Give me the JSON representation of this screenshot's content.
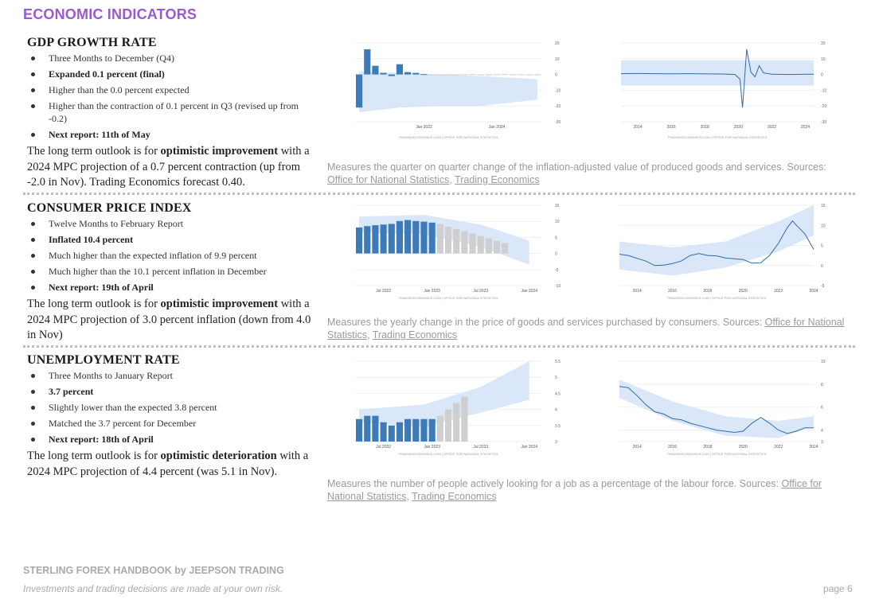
{
  "page": {
    "title": "ECONOMIC INDICATORS",
    "footer_brand": "STERLING FOREX HANDBOOK by JEEPSON TRADING",
    "footer_risk": "Investments and trading decisions are made at your own risk.",
    "page_number": "page 6"
  },
  "sections": {
    "gdp": {
      "heading": "GDP GROWTH RATE",
      "bullets": [
        "Three Months to December (Q4)",
        "Expanded 0.1 percent (final)",
        "Higher than the 0.0 percent expected",
        "Higher than the contraction of 0.1 percent in Q3 (revised up from -0.2)",
        "Next report: 11th of May"
      ],
      "outlook_pre": "The long term outlook is for ",
      "outlook_bold": "optimistic improvement",
      "outlook_post": " with a 2024 MPC projection of a 0.7 percent contraction (up from -2.0 in Nov). Trading Economics forecast 0.40.",
      "desc_text": "Measures the quarter on quarter change of the inflation-adjusted value of produced goods and services. Sources: ",
      "source1": "Office for National Statistics",
      "sep": ", ",
      "source2": "Trading Economics"
    },
    "cpi": {
      "heading": "CONSUMER PRICE INDEX",
      "bullets": [
        "Twelve Months to February Report",
        "Inflated 10.4 percent",
        "Much higher than the expected inflation of 9.9 percent",
        "Much higher than the 10.1 percent inflation in December",
        "Next report: 19th of April"
      ],
      "outlook_pre": "The long term outlook is for ",
      "outlook_bold": "optimistic improvement",
      "outlook_post": " with a 2024 MPC projection of 3.0 percent inflation (down from 4.0 in Nov)",
      "desc_text": "Measures the yearly change in the price of goods and services purchased by consumers. Sources: ",
      "source1": "Office for National Statistics",
      "sep": ", ",
      "source2": "Trading Economics"
    },
    "unemp": {
      "heading": "UNEMPLOYMENT RATE",
      "bullets": [
        "Three Months to January Report",
        "3.7 percent",
        "Slightly lower than the expected 3.8 percent",
        "Matched the 3.7 percent for December",
        "Next report: 18th of April"
      ],
      "outlook_pre": "The long term outlook is for ",
      "outlook_bold": "optimistic deterioration",
      "outlook_post": " with a 2024 MPC projection of 4.4 percent (was 5.1 in Nov).",
      "desc_text": "Measures the number of people actively looking for a job as a percentage of the labour force. Sources: ",
      "source1": "Office for National Statistics",
      "sep": ", ",
      "source2": "Trading Economics"
    }
  },
  "colors": {
    "bar": "#3d7ab8",
    "forecast_bar": "#cfcfcf",
    "band": "#d3e3f7",
    "line": "#2f6aa8",
    "accent": "#9b59d0"
  },
  "chart_data": [
    {
      "id": "gdp-short",
      "type": "bar",
      "title": "",
      "credit": "TRADINGECONOMICS.COM | OFFICE FOR NATIONAL STATISTICS",
      "ylim": [
        -30,
        20
      ],
      "yticks": [
        20,
        10,
        0,
        -10,
        -20,
        -30
      ],
      "xticks": [
        {
          "i": 8,
          "label": "Jan 2022"
        },
        {
          "i": 17,
          "label": "Jan 2024"
        }
      ],
      "values": [
        -21,
        16,
        5.5,
        1,
        -1,
        6.5,
        1.5,
        1,
        0.2,
        0.1,
        0,
        0.1,
        -0.1,
        0.1,
        0.2,
        -0.1,
        0,
        0.1,
        0.2,
        0.1,
        0.1,
        0,
        0
      ],
      "actual_count": 9,
      "band": [
        [
          0,
          2,
          -24
        ],
        [
          5,
          1,
          -21
        ],
        [
          10,
          0,
          -20
        ],
        [
          15,
          -1,
          -20
        ],
        [
          22,
          -3,
          -16
        ]
      ]
    },
    {
      "id": "gdp-long",
      "type": "line",
      "title": "",
      "credit": "TRADINGECONOMICS.COM | OFFICE FOR NATIONAL STATISTICS",
      "ylim": [
        -30,
        20
      ],
      "yticks": [
        20,
        10,
        0,
        -10,
        -20,
        -30
      ],
      "xlabels": [
        "2014",
        "2016",
        "2018",
        "2020",
        "2022",
        "2024"
      ],
      "x": [
        2013,
        2014,
        2015,
        2016,
        2017,
        2018,
        2019,
        2019.8,
        2020.1,
        2020.25,
        2020.5,
        2020.75,
        2021.0,
        2021.25,
        2021.5,
        2022,
        2023,
        2024.5
      ],
      "y": [
        0.5,
        0.6,
        0.5,
        0.4,
        0.5,
        0.4,
        0.3,
        0,
        -3,
        -21,
        16,
        1.5,
        -1.5,
        5.5,
        1,
        0.2,
        0,
        0.2
      ],
      "band": [
        [
          2013,
          9,
          -7
        ],
        [
          2024.5,
          9,
          -7
        ]
      ]
    },
    {
      "id": "cpi-short",
      "type": "bar",
      "title": "",
      "credit": "TRADINGECONOMICS.COM | OFFICE FOR NATIONAL STATISTICS",
      "ylim": [
        -10,
        15
      ],
      "yticks": [
        15,
        10,
        5,
        0,
        -5,
        -10
      ],
      "xticks": [
        {
          "i": 3,
          "label": "Jul 2022"
        },
        {
          "i": 9,
          "label": "Jan 2023"
        },
        {
          "i": 15,
          "label": "Jul 2023"
        },
        {
          "i": 21,
          "label": "Jan 2024"
        }
      ],
      "values": [
        8.1,
        8.5,
        8.8,
        9.0,
        9.2,
        10.1,
        10.4,
        10.1,
        9.9,
        9.6,
        9.2,
        8.3,
        7.6,
        6.9,
        6.2,
        5.4,
        4.7,
        3.9,
        3.3
      ],
      "actual_count": 10,
      "band": [
        [
          0,
          11.5,
          6.5
        ],
        [
          8,
          12,
          6
        ],
        [
          15,
          9,
          2
        ],
        [
          21,
          4,
          -3.5
        ]
      ]
    },
    {
      "id": "cpi-long",
      "type": "line",
      "title": "",
      "credit": "TRADINGECONOMICS.COM | OFFICE FOR NATIONAL STATISTICS",
      "ylim": [
        -5,
        15
      ],
      "yticks": [
        15,
        10,
        5,
        0,
        -5
      ],
      "xlabels": [
        "2014",
        "2016",
        "2018",
        "2020",
        "2022",
        "2024"
      ],
      "x": [
        2013,
        2013.5,
        2014,
        2014.5,
        2015,
        2015.5,
        2016,
        2016.5,
        2017,
        2017.5,
        2018,
        2018.5,
        2019,
        2019.5,
        2020,
        2020.5,
        2021,
        2021.5,
        2022,
        2022.5,
        2022.8,
        2023,
        2023.5,
        2024
      ],
      "y": [
        2.8,
        2.5,
        1.8,
        1.1,
        0.0,
        0.1,
        0.5,
        1.1,
        2.5,
        3.0,
        2.5,
        2.4,
        1.9,
        1.7,
        1.5,
        0.6,
        0.7,
        2.5,
        5.5,
        9.4,
        11.1,
        10.1,
        7.9,
        4.0
      ],
      "band": [
        [
          2013,
          6,
          -1
        ],
        [
          2016,
          4.5,
          -2.5
        ],
        [
          2019,
          6,
          -0.5
        ],
        [
          2022,
          11,
          3.5
        ],
        [
          2024,
          15,
          7.5
        ]
      ]
    },
    {
      "id": "unemp-short",
      "type": "bar",
      "title": "",
      "credit": "TRADINGECONOMICS.COM | OFFICE FOR NATIONAL STATISTICS",
      "ylim": [
        3,
        5.5
      ],
      "yticks": [
        5.5,
        5,
        4.5,
        4,
        3.5,
        3
      ],
      "xticks": [
        {
          "i": 3,
          "label": "Jul 2022"
        },
        {
          "i": 9,
          "label": "Jan 2023"
        },
        {
          "i": 15,
          "label": "Jul 2023"
        },
        {
          "i": 21,
          "label": "Jan 2024"
        }
      ],
      "values": [
        3.7,
        3.8,
        3.8,
        3.6,
        3.5,
        3.6,
        3.7,
        3.7,
        3.7,
        3.7,
        3.8,
        4.0,
        4.2,
        4.4
      ],
      "actual_count": 10,
      "band": [
        [
          0,
          4.0,
          3.6
        ],
        [
          8,
          4.15,
          3.45
        ],
        [
          15,
          4.7,
          3.9
        ],
        [
          21,
          5.5,
          4.3
        ]
      ]
    },
    {
      "id": "unemp-long",
      "type": "line",
      "title": "",
      "credit": "TRADINGECONOMICS.COM | OFFICE FOR NATIONAL STATISTICS",
      "ylim": [
        3,
        10
      ],
      "yticks": [
        10,
        8,
        6,
        4,
        3
      ],
      "xlabels": [
        "2014",
        "2016",
        "2018",
        "2020",
        "2022",
        "2024"
      ],
      "x": [
        2013,
        2013.5,
        2014,
        2014.5,
        2015,
        2015.5,
        2016,
        2016.5,
        2017,
        2017.5,
        2018,
        2018.5,
        2019,
        2019.5,
        2020,
        2020.5,
        2021,
        2021.5,
        2022,
        2022.5,
        2023,
        2023.5,
        2024
      ],
      "y": [
        7.8,
        7.7,
        7.0,
        6.2,
        5.6,
        5.4,
        5.0,
        4.9,
        4.6,
        4.4,
        4.2,
        4.0,
        3.9,
        3.8,
        3.9,
        4.6,
        5.1,
        4.6,
        4.0,
        3.7,
        3.9,
        4.2,
        4.2
      ],
      "band": [
        [
          2013,
          8.4,
          6.8
        ],
        [
          2016,
          6.5,
          4.8
        ],
        [
          2019,
          5.2,
          3.5
        ],
        [
          2022,
          4.8,
          3.3
        ],
        [
          2024,
          5.2,
          4.3
        ]
      ]
    }
  ]
}
